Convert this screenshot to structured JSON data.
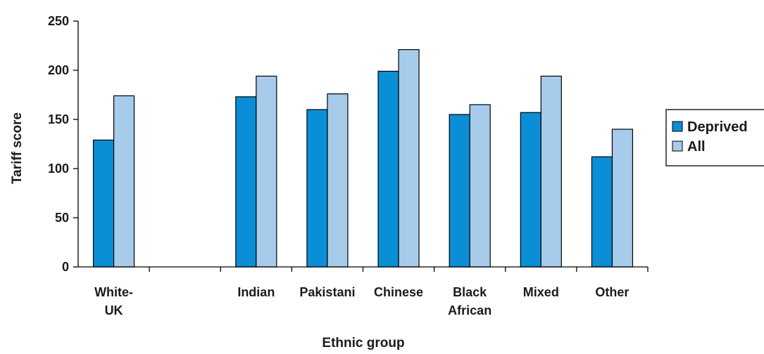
{
  "chart_data": {
    "type": "bar",
    "xlabel": "Ethnic group",
    "ylabel": "Tariff score",
    "ylim": [
      0,
      250
    ],
    "yticks": [
      0,
      50,
      100,
      150,
      200,
      250
    ],
    "grid": false,
    "legend_placement": "right",
    "categories": [
      [
        "White-",
        "UK"
      ],
      [
        ""
      ],
      [
        "Indian"
      ],
      [
        "Pakistani"
      ],
      [
        "Chinese"
      ],
      [
        "Black",
        "African"
      ],
      [
        "Mixed"
      ],
      [
        "Other"
      ]
    ],
    "series": [
      {
        "name": "Deprived",
        "color": "#0a8fd6",
        "values": [
          129,
          null,
          173,
          160,
          199,
          155,
          157,
          112
        ]
      },
      {
        "name": "All",
        "color": "#a6cbeb",
        "values": [
          174,
          null,
          194,
          176,
          221,
          165,
          194,
          140
        ]
      }
    ]
  }
}
